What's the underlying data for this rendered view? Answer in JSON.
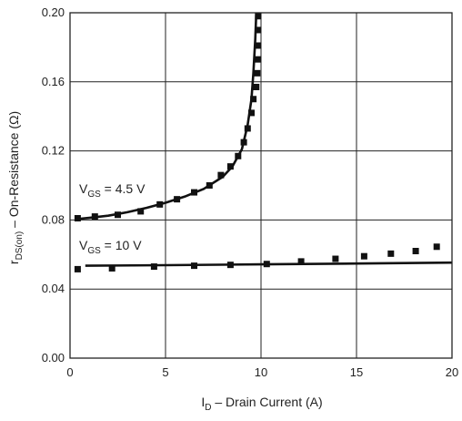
{
  "chart_data": {
    "type": "line",
    "xlabel": {
      "main": "I",
      "sub": "D",
      "rest": " – Drain Current (A)"
    },
    "ylabel": {
      "main": "r",
      "sub": "DS(on)",
      "rest": " – On-Resistance (Ω)"
    },
    "xlim": [
      0,
      20
    ],
    "ylim": [
      0,
      0.2
    ],
    "x_ticks": [
      "0",
      "5",
      "10",
      "15",
      "20"
    ],
    "y_ticks": [
      "0.00",
      "0.04",
      "0.08",
      "0.12",
      "0.16",
      "0.20"
    ],
    "grid": true,
    "series": [
      {
        "name": {
          "main": "V",
          "sub": "GS",
          "rest": " = 4.5 V"
        },
        "line": [
          [
            0.3,
            0.0805
          ],
          [
            1,
            0.0812
          ],
          [
            2,
            0.0825
          ],
          [
            3,
            0.0845
          ],
          [
            4,
            0.087
          ],
          [
            5,
            0.09
          ],
          [
            6,
            0.0935
          ],
          [
            7,
            0.098
          ],
          [
            8,
            0.105
          ],
          [
            8.5,
            0.111
          ],
          [
            9,
            0.121
          ],
          [
            9.3,
            0.135
          ],
          [
            9.5,
            0.15
          ],
          [
            9.6,
            0.165
          ],
          [
            9.7,
            0.185
          ],
          [
            9.75,
            0.2
          ]
        ],
        "markers": [
          [
            0.4,
            0.081
          ],
          [
            1.3,
            0.082
          ],
          [
            2.5,
            0.083
          ],
          [
            3.7,
            0.085
          ],
          [
            4.7,
            0.089
          ],
          [
            5.6,
            0.092
          ],
          [
            6.5,
            0.096
          ],
          [
            7.3,
            0.1
          ],
          [
            7.9,
            0.106
          ],
          [
            8.4,
            0.111
          ],
          [
            8.8,
            0.117
          ],
          [
            9.1,
            0.125
          ],
          [
            9.3,
            0.133
          ],
          [
            9.5,
            0.142
          ],
          [
            9.6,
            0.15
          ],
          [
            9.75,
            0.157
          ],
          [
            9.8,
            0.165
          ],
          [
            9.85,
            0.173
          ],
          [
            9.85,
            0.181
          ],
          [
            9.85,
            0.19
          ],
          [
            9.85,
            0.198
          ]
        ]
      },
      {
        "name": {
          "main": "V",
          "sub": "GS",
          "rest": " = 10 V"
        },
        "line": [
          [
            0.8,
            0.0535
          ],
          [
            5,
            0.0538
          ],
          [
            10,
            0.0543
          ],
          [
            15,
            0.0548
          ],
          [
            20,
            0.0553
          ]
        ],
        "markers": [
          [
            0.4,
            0.0515
          ],
          [
            2.2,
            0.052
          ],
          [
            4.4,
            0.053
          ],
          [
            6.5,
            0.0535
          ],
          [
            8.4,
            0.054
          ],
          [
            10.3,
            0.0545
          ],
          [
            12.1,
            0.056
          ],
          [
            13.9,
            0.0575
          ],
          [
            15.4,
            0.059
          ],
          [
            16.8,
            0.0605
          ],
          [
            18.1,
            0.062
          ],
          [
            19.2,
            0.0645
          ]
        ]
      }
    ]
  }
}
